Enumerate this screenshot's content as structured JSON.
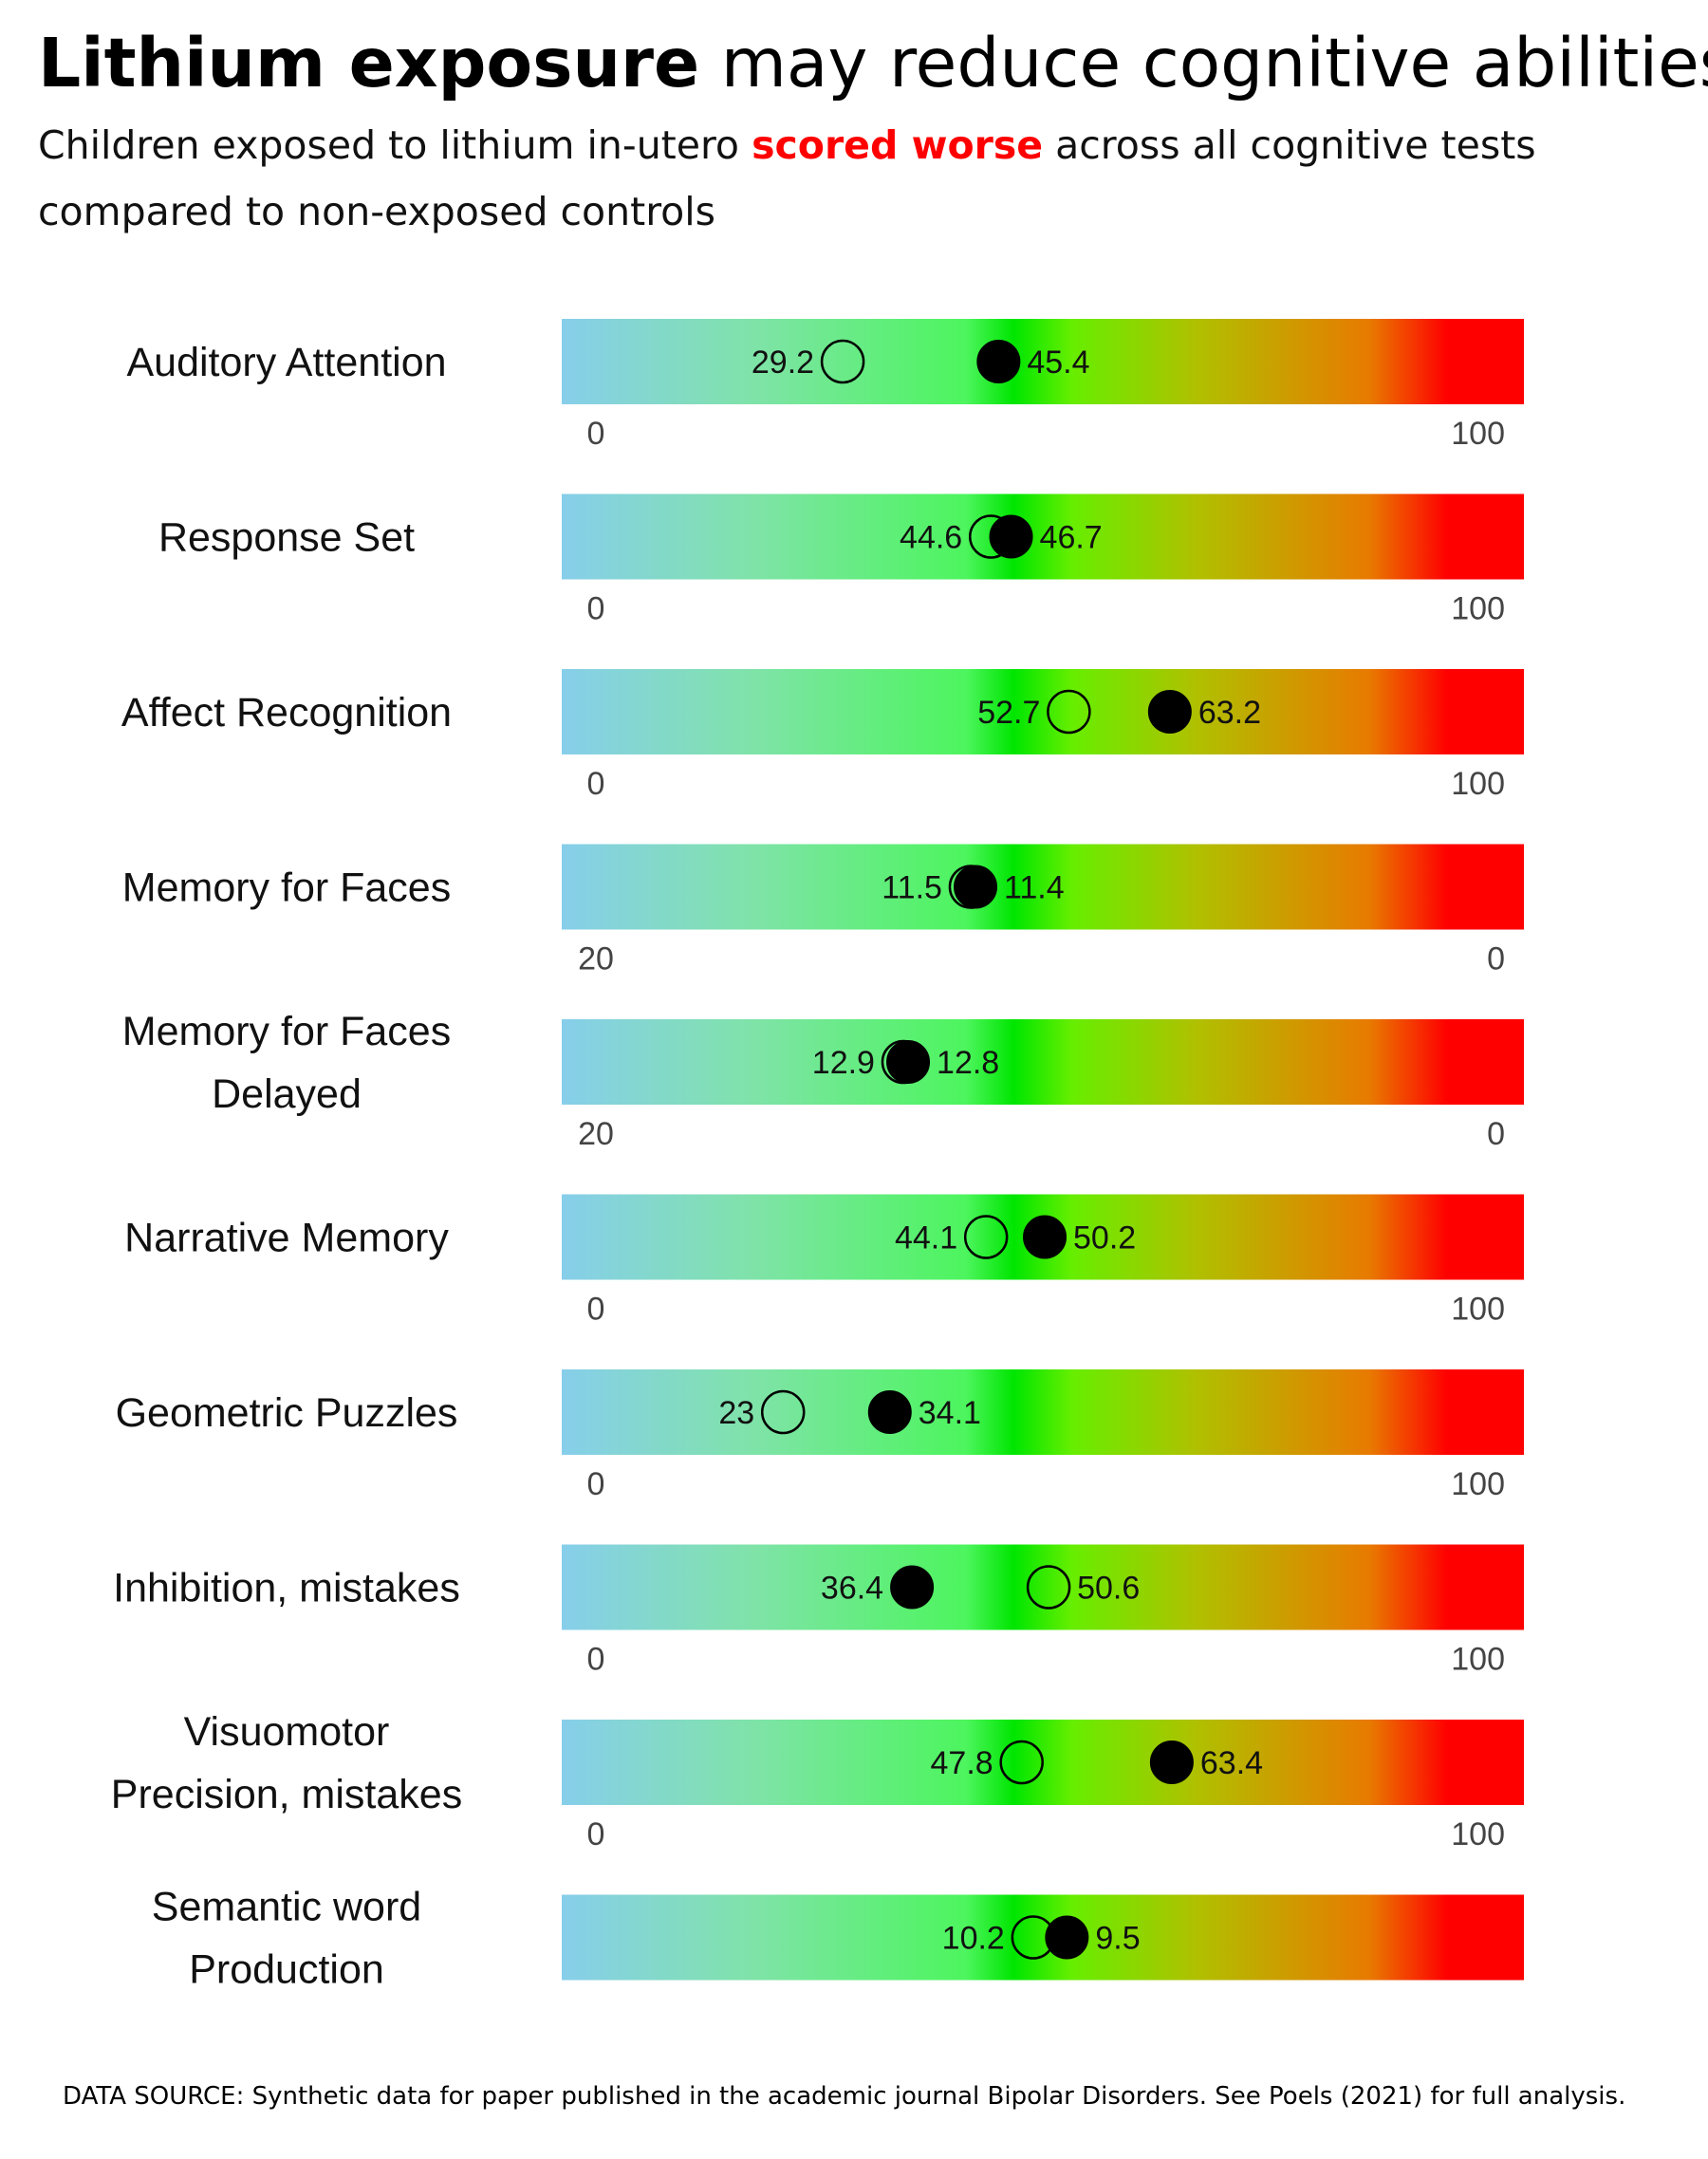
{
  "header": {
    "title_bold": "Lithium exposure",
    "title_rest": "may reduce cognitive abilities",
    "subtitle_pre": "Children exposed to lithium in-utero",
    "subtitle_highlight": "scored worse",
    "subtitle_post": "across all cognitive tests compared to non-exposed controls"
  },
  "footer": {
    "source": "DATA SOURCE: Synthetic data for paper published in the academic journal Bipolar Disorders. See Poels (2021) for full analysis."
  },
  "colors": {
    "highlight": "#ff0000",
    "gradient": [
      "#87ceeb",
      "#7fe3a8",
      "#4df55e",
      "#00e600",
      "#66ee00",
      "#b0c000",
      "#e87a00",
      "#ff0000"
    ],
    "exposed_marker": "#000000",
    "control_marker": "none"
  },
  "chart_data": {
    "type": "dot-range",
    "legend": "none",
    "marker_encoding": {
      "filled": "lithium-exposed",
      "open": "non-exposed controls"
    },
    "rows": [
      {
        "label": "Auditory Attention",
        "range": [
          0,
          100
        ],
        "tick_labels": [
          "0",
          "100"
        ],
        "control": 29.2,
        "exposed": 45.4,
        "control_label": "29.2",
        "exposed_label": "45.4"
      },
      {
        "label": "Response Set",
        "range": [
          0,
          100
        ],
        "tick_labels": [
          "0",
          "100"
        ],
        "control": 44.6,
        "exposed": 46.7,
        "control_label": "44.6",
        "exposed_label": "46.7"
      },
      {
        "label": "Affect Recognition",
        "range": [
          0,
          100
        ],
        "tick_labels": [
          "0",
          "100"
        ],
        "control": 52.7,
        "exposed": 63.2,
        "control_label": "52.7",
        "exposed_label": "63.2"
      },
      {
        "label": "Memory for Faces",
        "range": [
          20,
          0
        ],
        "tick_labels": [
          "20",
          "0"
        ],
        "control": 11.5,
        "exposed": 11.4,
        "control_label": "11.5",
        "exposed_label": "11.4"
      },
      {
        "label": "Memory for Faces Delayed",
        "range": [
          20,
          0
        ],
        "tick_labels": [
          "20",
          "0"
        ],
        "control": 12.9,
        "exposed": 12.8,
        "control_label": "12.9",
        "exposed_label": "12.8"
      },
      {
        "label": "Narrative Memory",
        "range": [
          0,
          100
        ],
        "tick_labels": [
          "0",
          "100"
        ],
        "control": 44.1,
        "exposed": 50.2,
        "control_label": "44.1",
        "exposed_label": "50.2"
      },
      {
        "label": "Geometric Puzzles",
        "range": [
          0,
          100
        ],
        "tick_labels": [
          "0",
          "100"
        ],
        "control": 23,
        "exposed": 34.1,
        "control_label": "23",
        "exposed_label": "34.1"
      },
      {
        "label": "Inhibition, mistakes",
        "range": [
          0,
          100
        ],
        "tick_labels": [
          "0",
          "100"
        ],
        "control": 50.6,
        "exposed": 36.4,
        "control_label": "50.6",
        "exposed_label": "36.4"
      },
      {
        "label": "Visuomotor Precision, mistakes",
        "range": [
          0,
          100
        ],
        "tick_labels": [
          "0",
          "100"
        ],
        "control": 47.8,
        "exposed": 63.4,
        "control_label": "47.8",
        "exposed_label": "63.4"
      },
      {
        "label": "Semantic word Production",
        "range": [
          20,
          0
        ],
        "tick_labels": [],
        "control": 10.2,
        "exposed": 9.5,
        "control_label": "10.2",
        "exposed_label": "9.5"
      }
    ]
  }
}
